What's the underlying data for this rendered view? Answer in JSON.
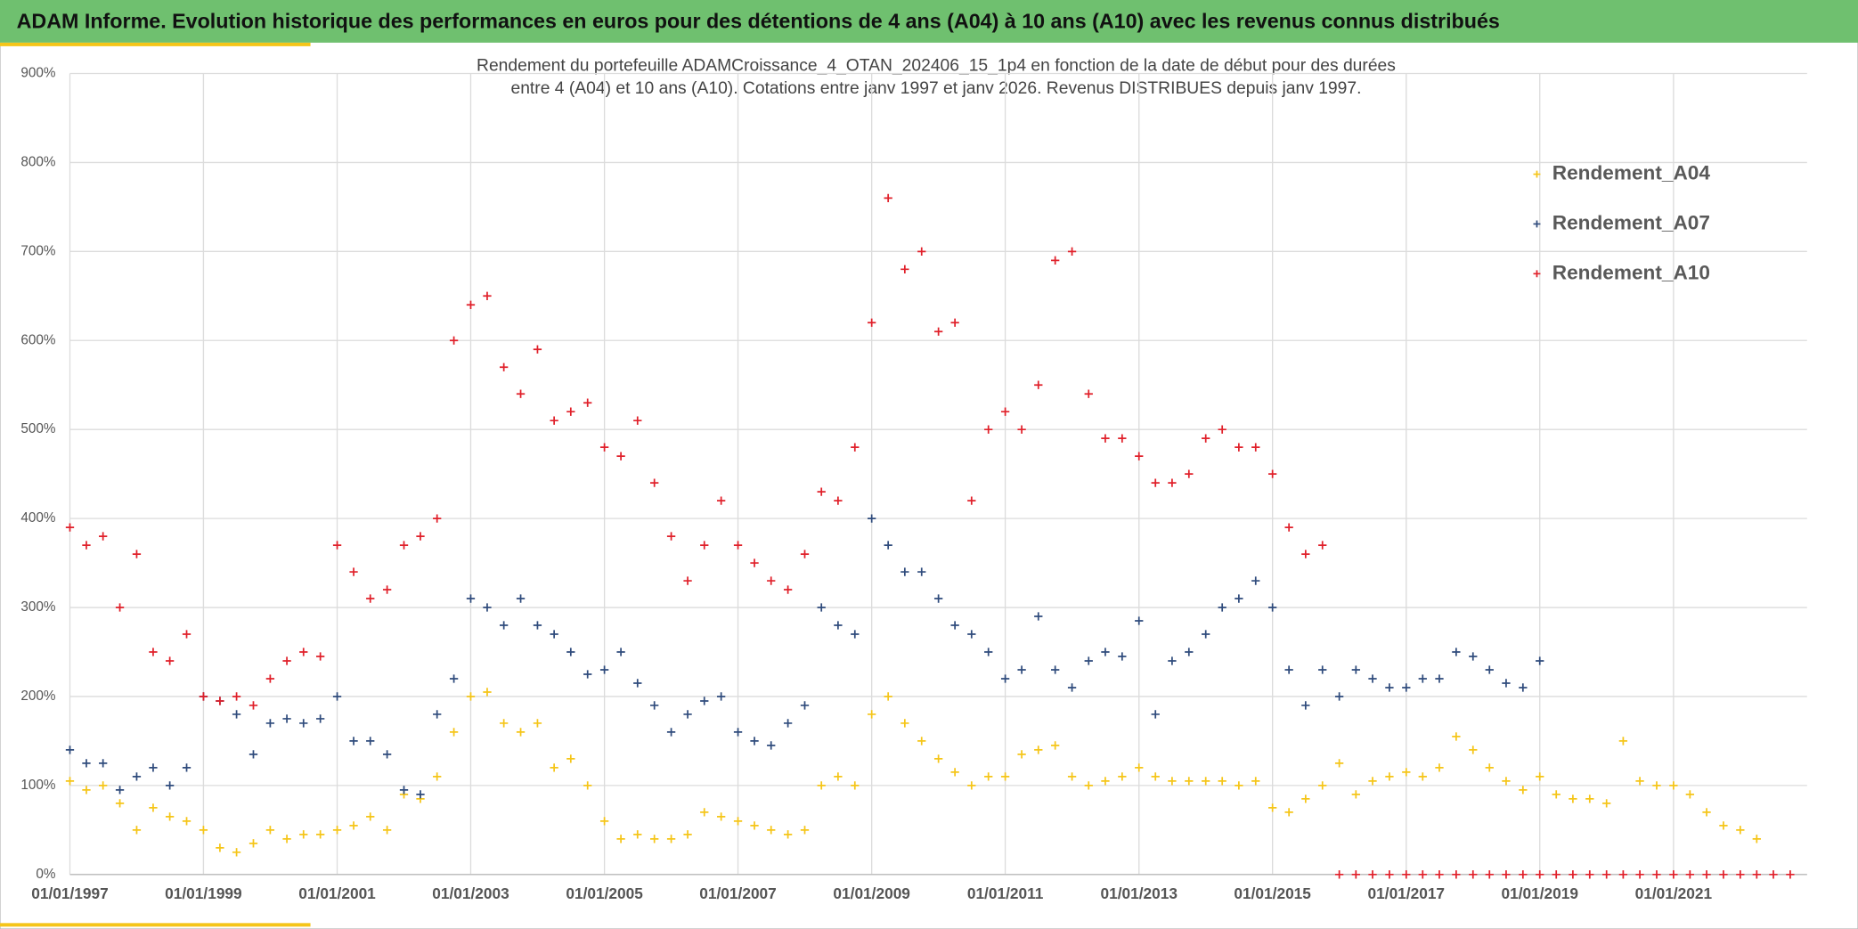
{
  "header": {
    "title": "ADAM Informe. Evolution historique des performances en euros pour des détentions de 4 ans (A04) à 10 ans (A10) avec les revenus connus distribués"
  },
  "chart_data": {
    "type": "scatter",
    "title": [
      "Rendement du portefeuille ADAMCroissance_4_OTAN_202406_15_1p4  en fonction de la date de début pour des durées",
      "entre 4 (A04) et 10 ans (A10). Cotations entre janv 1997 et janv 2026. Revenus DISTRIBUES depuis janv 1997."
    ],
    "grid": true,
    "legend": "upper right",
    "xlim": [
      "1997-01-01",
      "2023-01-01"
    ],
    "xticks": [
      {
        "value": "1997-01-01",
        "label": "01/01/1997"
      },
      {
        "value": "1999-01-01",
        "label": "01/01/1999"
      },
      {
        "value": "2001-01-01",
        "label": "01/01/2001"
      },
      {
        "value": "2003-01-01",
        "label": "01/01/2003"
      },
      {
        "value": "2005-01-01",
        "label": "01/01/2005"
      },
      {
        "value": "2007-01-01",
        "label": "01/01/2007"
      },
      {
        "value": "2009-01-01",
        "label": "01/01/2009"
      },
      {
        "value": "2011-01-01",
        "label": "01/01/2011"
      },
      {
        "value": "2013-01-01",
        "label": "01/01/2013"
      },
      {
        "value": "2015-01-01",
        "label": "01/01/2015"
      },
      {
        "value": "2017-01-01",
        "label": "01/01/2017"
      },
      {
        "value": "2019-01-01",
        "label": "01/01/2019"
      },
      {
        "value": "2021-01-01",
        "label": "01/01/2021"
      }
    ],
    "ylim": [
      0,
      900
    ],
    "yticks": [
      {
        "value": 0,
        "label": "0%"
      },
      {
        "value": 100,
        "label": "100%"
      },
      {
        "value": 200,
        "label": "200%"
      },
      {
        "value": 300,
        "label": "300%"
      },
      {
        "value": 400,
        "label": "400%"
      },
      {
        "value": 500,
        "label": "500%"
      },
      {
        "value": 600,
        "label": "600%"
      },
      {
        "value": 700,
        "label": "700%"
      },
      {
        "value": 800,
        "label": "800%"
      },
      {
        "value": 900,
        "label": "900%"
      }
    ],
    "x": [
      "1997-01-01",
      "1997-04-01",
      "1997-07-01",
      "1997-10-01",
      "1998-01-01",
      "1998-04-01",
      "1998-07-01",
      "1998-10-01",
      "1999-01-01",
      "1999-04-01",
      "1999-07-01",
      "1999-10-01",
      "2000-01-01",
      "2000-04-01",
      "2000-07-01",
      "2000-10-01",
      "2001-01-01",
      "2001-04-01",
      "2001-07-01",
      "2001-10-01",
      "2002-01-01",
      "2002-04-01",
      "2002-07-01",
      "2002-10-01",
      "2003-01-01",
      "2003-04-01",
      "2003-07-01",
      "2003-10-01",
      "2004-01-01",
      "2004-04-01",
      "2004-07-01",
      "2004-10-01",
      "2005-01-01",
      "2005-04-01",
      "2005-07-01",
      "2005-10-01",
      "2006-01-01",
      "2006-04-01",
      "2006-07-01",
      "2006-10-01",
      "2007-01-01",
      "2007-04-01",
      "2007-07-01",
      "2007-10-01",
      "2008-01-01",
      "2008-04-01",
      "2008-07-01",
      "2008-10-01",
      "2009-01-01",
      "2009-04-01",
      "2009-07-01",
      "2009-10-01",
      "2010-01-01",
      "2010-04-01",
      "2010-07-01",
      "2010-10-01",
      "2011-01-01",
      "2011-04-01",
      "2011-07-01",
      "2011-10-01",
      "2012-01-01",
      "2012-04-01",
      "2012-07-01",
      "2012-10-01",
      "2013-01-01",
      "2013-04-01",
      "2013-07-01",
      "2013-10-01",
      "2014-01-01",
      "2014-04-01",
      "2014-07-01",
      "2014-10-01",
      "2015-01-01",
      "2015-04-01",
      "2015-07-01",
      "2015-10-01",
      "2016-01-01",
      "2016-04-01",
      "2016-07-01",
      "2016-10-01",
      "2017-01-01",
      "2017-04-01",
      "2017-07-01",
      "2017-10-01",
      "2018-01-01",
      "2018-04-01",
      "2018-07-01",
      "2018-10-01",
      "2019-01-01",
      "2019-04-01",
      "2019-07-01",
      "2019-10-01",
      "2020-01-01",
      "2020-04-01",
      "2020-07-01",
      "2020-10-01",
      "2021-01-01",
      "2021-04-01",
      "2021-07-01",
      "2021-10-01",
      "2022-01-01",
      "2022-04-01",
      "2022-07-01",
      "2022-10-01"
    ],
    "series": [
      {
        "name": "Rendement_A04",
        "color": "#f5c518",
        "values": [
          105,
          95,
          100,
          80,
          50,
          75,
          65,
          60,
          50,
          30,
          25,
          35,
          50,
          40,
          45,
          45,
          50,
          55,
          65,
          50,
          90,
          85,
          110,
          160,
          200,
          205,
          170,
          160,
          170,
          120,
          130,
          100,
          60,
          40,
          45,
          40,
          40,
          45,
          70,
          65,
          60,
          55,
          50,
          45,
          50,
          100,
          110,
          100,
          180,
          200,
          170,
          150,
          130,
          115,
          100,
          110,
          110,
          135,
          140,
          145,
          110,
          100,
          105,
          110,
          120,
          110,
          105,
          105,
          105,
          105,
          100,
          105,
          75,
          70,
          85,
          100,
          125,
          90,
          105,
          110,
          115,
          110,
          120,
          155,
          140,
          120,
          105,
          95,
          110,
          90,
          85,
          85,
          80,
          150,
          105,
          100,
          100,
          90,
          70,
          55,
          50,
          40,
          null,
          null
        ]
      },
      {
        "name": "Rendement_A07",
        "color": "#2f4b7c",
        "values": [
          140,
          125,
          125,
          95,
          110,
          120,
          100,
          120,
          200,
          195,
          180,
          135,
          170,
          175,
          170,
          175,
          200,
          150,
          150,
          135,
          95,
          90,
          180,
          220,
          310,
          300,
          280,
          310,
          280,
          270,
          250,
          225,
          230,
          250,
          215,
          190,
          160,
          180,
          195,
          200,
          160,
          150,
          145,
          170,
          190,
          300,
          280,
          270,
          400,
          370,
          340,
          340,
          310,
          280,
          270,
          250,
          220,
          230,
          290,
          230,
          210,
          240,
          250,
          245,
          285,
          180,
          240,
          250,
          270,
          300,
          310,
          330,
          300,
          230,
          190,
          230,
          200,
          230,
          220,
          210,
          210,
          220,
          220,
          250,
          245,
          230,
          215,
          210,
          240,
          null,
          null,
          null,
          null,
          null,
          null,
          null,
          null,
          null,
          null,
          null,
          null,
          null,
          null,
          null
        ]
      },
      {
        "name": "Rendement_A10",
        "color": "#e0202a",
        "values": [
          390,
          370,
          380,
          300,
          360,
          250,
          240,
          270,
          200,
          195,
          200,
          190,
          220,
          240,
          250,
          245,
          370,
          340,
          310,
          320,
          370,
          380,
          400,
          600,
          640,
          650,
          570,
          540,
          590,
          510,
          520,
          530,
          480,
          470,
          510,
          440,
          380,
          330,
          370,
          420,
          370,
          350,
          330,
          320,
          360,
          430,
          420,
          480,
          620,
          760,
          680,
          700,
          610,
          620,
          420,
          500,
          520,
          500,
          550,
          690,
          700,
          540,
          490,
          490,
          470,
          440,
          440,
          450,
          490,
          500,
          480,
          480,
          450,
          390,
          360,
          370,
          0,
          0,
          0,
          0,
          0,
          0,
          0,
          0,
          0,
          0,
          0,
          0,
          0,
          0,
          0,
          0,
          0,
          0,
          0,
          0,
          0,
          0,
          0,
          0,
          0,
          0,
          0,
          0
        ]
      }
    ]
  }
}
